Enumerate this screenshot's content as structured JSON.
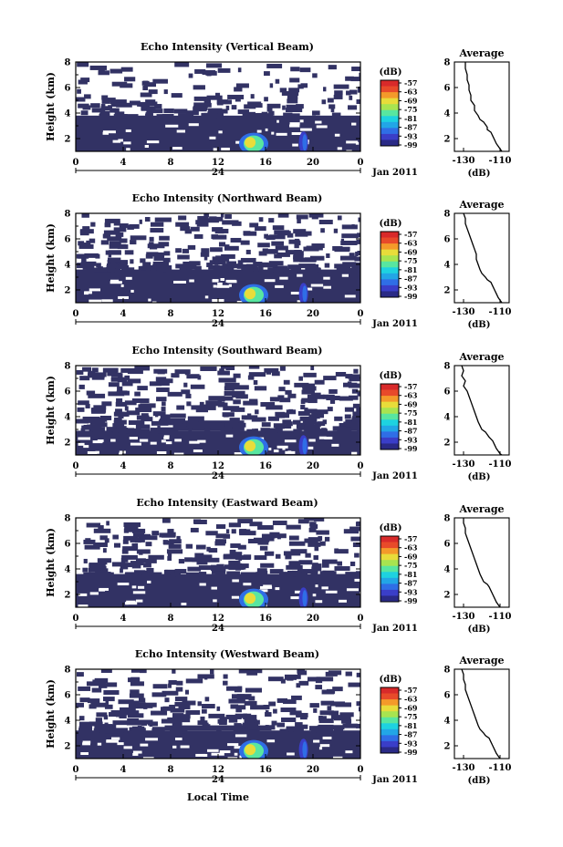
{
  "figure": {
    "date_label": "Jan 2011",
    "bottom_xlabel": "Local Time",
    "colors": {
      "fill": "#323264",
      "frame": "#000000",
      "colorbar": [
        "#2a2a86",
        "#3a3ec8",
        "#2f6ee6",
        "#22a6e6",
        "#1ed2e0",
        "#58e6a0",
        "#a8e450",
        "#e8dc3a",
        "#f49a2a",
        "#e84a2a",
        "#d82a2a"
      ]
    }
  },
  "chart_data": [
    {
      "type": "heatmap",
      "title": "Echo Intensity (Vertical Beam)",
      "ylabel": "Height (km)",
      "x_ticks": [
        "0",
        "4",
        "8",
        "12",
        "16",
        "20",
        "0"
      ],
      "x_sublabel": "24",
      "y_ticks": [
        "2",
        "4",
        "6",
        "8"
      ],
      "xlim": [
        0,
        24
      ],
      "ylim": [
        1,
        8
      ],
      "main_layer_top_km": 3.8,
      "colorbar": {
        "unit": "(dB)",
        "ticks": [
          "-57",
          "-63",
          "-69",
          "-75",
          "-81",
          "-87",
          "-93",
          "-99"
        ]
      },
      "profile": {
        "type": "line",
        "title": "Average",
        "xlabel": "(dB)",
        "x_ticks": [
          "-130",
          "-110"
        ],
        "y_ticks": [
          "2",
          "4",
          "6",
          "8"
        ],
        "xlim": [
          -135,
          -105
        ],
        "ylim": [
          1,
          8
        ],
        "x": [
          -129,
          -129,
          -128,
          -128,
          -127,
          -127,
          -126,
          -126,
          -124,
          -124,
          -122,
          -121,
          -119,
          -118,
          -117,
          -117,
          -115,
          -114,
          -113,
          -112,
          -111,
          -110,
          -109
        ],
        "y": [
          8.0,
          7.5,
          7.0,
          6.6,
          6.2,
          5.8,
          5.4,
          5.0,
          4.6,
          4.2,
          3.8,
          3.5,
          3.3,
          3.1,
          2.9,
          2.7,
          2.5,
          2.2,
          1.9,
          1.6,
          1.4,
          1.2,
          1.0
        ]
      }
    },
    {
      "type": "heatmap",
      "title": "Echo Intensity (Northward Beam)",
      "ylabel": "Height (km)",
      "x_ticks": [
        "0",
        "4",
        "8",
        "12",
        "16",
        "20",
        "0"
      ],
      "x_sublabel": "24",
      "y_ticks": [
        "2",
        "4",
        "6",
        "8"
      ],
      "xlim": [
        0,
        24
      ],
      "ylim": [
        1,
        8
      ],
      "main_layer_top_km": 3.6,
      "colorbar": {
        "unit": "(dB)",
        "ticks": [
          "-57",
          "-63",
          "-69",
          "-75",
          "-81",
          "-87",
          "-93",
          "-99"
        ]
      },
      "profile": {
        "type": "line",
        "title": "Average",
        "xlabel": "(dB)",
        "x_ticks": [
          "-130",
          "-110"
        ],
        "y_ticks": [
          "2",
          "4",
          "6",
          "8"
        ],
        "xlim": [
          -135,
          -105
        ],
        "ylim": [
          1,
          8
        ],
        "x": [
          -130,
          -129,
          -129,
          -128,
          -127,
          -126,
          -125,
          -124,
          -123,
          -123,
          -122,
          -121,
          -120,
          -118,
          -117,
          -115,
          -114,
          -113,
          -112,
          -111,
          -110,
          -109
        ],
        "y": [
          8.0,
          7.6,
          7.2,
          6.8,
          6.4,
          6.0,
          5.6,
          5.2,
          4.8,
          4.4,
          4.0,
          3.6,
          3.3,
          3.0,
          2.8,
          2.6,
          2.3,
          2.0,
          1.7,
          1.4,
          1.2,
          1.0
        ]
      }
    },
    {
      "type": "heatmap",
      "title": "Echo Intensity (Southward Beam)",
      "ylabel": "Height (km)",
      "x_ticks": [
        "0",
        "4",
        "8",
        "12",
        "16",
        "20",
        "0"
      ],
      "x_sublabel": "24",
      "y_ticks": [
        "2",
        "4",
        "6",
        "8"
      ],
      "xlim": [
        0,
        24
      ],
      "ylim": [
        1,
        8
      ],
      "main_layer_top_km": 2.9,
      "colorbar": {
        "unit": "(dB)",
        "ticks": [
          "-57",
          "-63",
          "-69",
          "-75",
          "-81",
          "-87",
          "-93",
          "-99"
        ]
      },
      "profile": {
        "type": "line",
        "title": "Average",
        "xlabel": "(dB)",
        "x_ticks": [
          "-130",
          "-110"
        ],
        "y_ticks": [
          "2",
          "4",
          "6",
          "8"
        ],
        "xlim": [
          -135,
          -105
        ],
        "ylim": [
          1,
          8
        ],
        "x": [
          -131,
          -130,
          -131,
          -129,
          -130,
          -128,
          -127,
          -126,
          -125,
          -124,
          -123,
          -122,
          -121,
          -120,
          -118,
          -117,
          -116,
          -114,
          -113,
          -112,
          -111,
          -110,
          -109
        ],
        "y": [
          8.0,
          7.6,
          7.2,
          6.8,
          6.4,
          6.0,
          5.6,
          5.2,
          4.8,
          4.4,
          4.0,
          3.6,
          3.3,
          3.0,
          2.8,
          2.6,
          2.4,
          2.1,
          1.8,
          1.5,
          1.3,
          1.1,
          1.0
        ]
      }
    },
    {
      "type": "heatmap",
      "title": "Echo Intensity (Eastward Beam)",
      "ylabel": "Height (km)",
      "x_ticks": [
        "0",
        "4",
        "8",
        "12",
        "16",
        "20",
        "0"
      ],
      "x_sublabel": "24",
      "y_ticks": [
        "2",
        "4",
        "6",
        "8"
      ],
      "xlim": [
        0,
        24
      ],
      "ylim": [
        1,
        8
      ],
      "main_layer_top_km": 3.6,
      "colorbar": {
        "unit": "(dB)",
        "ticks": [
          "-57",
          "-63",
          "-69",
          "-75",
          "-81",
          "-87",
          "-93",
          "-99"
        ]
      },
      "profile": {
        "type": "line",
        "title": "Average",
        "xlabel": "(dB)",
        "x_ticks": [
          "-130",
          "-110"
        ],
        "y_ticks": [
          "2",
          "4",
          "6",
          "8"
        ],
        "xlim": [
          -135,
          -105
        ],
        "ylim": [
          1,
          8
        ],
        "x": [
          -130,
          -130,
          -129,
          -129,
          -128,
          -127,
          -126,
          -125,
          -124,
          -123,
          -122,
          -121,
          -120,
          -119,
          -117,
          -116,
          -115,
          -114,
          -113,
          -112,
          -111,
          -110
        ],
        "y": [
          8.0,
          7.6,
          7.2,
          6.8,
          6.4,
          6.0,
          5.6,
          5.2,
          4.8,
          4.4,
          4.0,
          3.6,
          3.3,
          3.0,
          2.8,
          2.6,
          2.3,
          2.0,
          1.7,
          1.4,
          1.2,
          1.0
        ]
      }
    },
    {
      "type": "heatmap",
      "title": "Echo Intensity (Westward Beam)",
      "ylabel": "Height (km)",
      "x_ticks": [
        "0",
        "4",
        "8",
        "12",
        "16",
        "20",
        "0"
      ],
      "x_sublabel": "24",
      "y_ticks": [
        "2",
        "4",
        "6",
        "8"
      ],
      "xlim": [
        0,
        24
      ],
      "ylim": [
        1,
        8
      ],
      "main_layer_top_km": 3.2,
      "colorbar": {
        "unit": "(dB)",
        "ticks": [
          "-57",
          "-63",
          "-69",
          "-75",
          "-81",
          "-87",
          "-93",
          "-99"
        ]
      },
      "profile": {
        "type": "line",
        "title": "Average",
        "xlabel": "(dB)",
        "x_ticks": [
          "-130",
          "-110"
        ],
        "y_ticks": [
          "2",
          "4",
          "6",
          "8"
        ],
        "xlim": [
          -135,
          -105
        ],
        "ylim": [
          1,
          8
        ],
        "x": [
          -131,
          -130,
          -130,
          -129,
          -129,
          -128,
          -127,
          -126,
          -125,
          -124,
          -123,
          -122,
          -121,
          -119,
          -118,
          -116,
          -115,
          -114,
          -113,
          -112,
          -111,
          -110
        ],
        "y": [
          8.0,
          7.6,
          7.2,
          6.8,
          6.4,
          6.0,
          5.6,
          5.2,
          4.8,
          4.4,
          4.0,
          3.6,
          3.3,
          3.0,
          2.8,
          2.6,
          2.3,
          2.0,
          1.7,
          1.4,
          1.2,
          1.0
        ]
      }
    }
  ]
}
